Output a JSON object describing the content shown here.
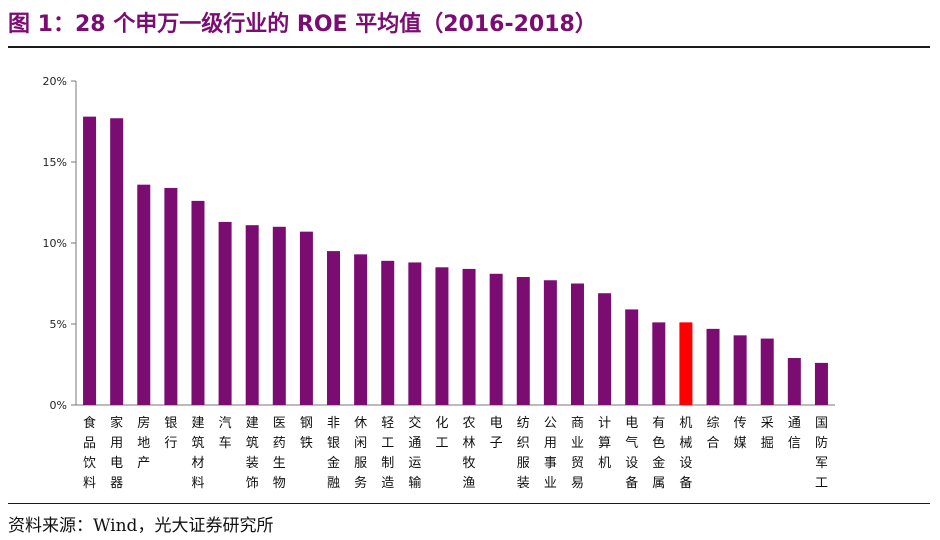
{
  "header": {
    "title": "图 1：28 个申万一级行业的 ROE 平均值（2016-2018）"
  },
  "footer": {
    "source": "资料来源：Wind，光大证券研究所"
  },
  "colors": {
    "bar": "#7B0C72",
    "highlight": "#FF0000",
    "title": "#7B0C72",
    "axis": "#777777"
  },
  "chart_data": {
    "type": "bar",
    "title": "28 个申万一级行业的 ROE 平均值（2016-2018）",
    "xlabel": "",
    "ylabel": "",
    "ylim": [
      0,
      20
    ],
    "ytick_labels": [
      "0%",
      "5%",
      "10%",
      "15%",
      "20%"
    ],
    "grid": false,
    "legend": "none",
    "highlight_category": "机械设备",
    "categories": [
      "食品饮料",
      "家用电器",
      "房地产",
      "银行",
      "建筑材料",
      "汽车",
      "建筑装饰",
      "医药生物",
      "钢铁",
      "非银金融",
      "休闲服务",
      "轻工制造",
      "交通运输",
      "化工",
      "农林牧渔",
      "电子",
      "纺织服装",
      "公用事业",
      "商业贸易",
      "计算机",
      "电气设备",
      "有色金属",
      "机械设备",
      "综合",
      "传媒",
      "采掘",
      "通信",
      "国防军工"
    ],
    "values": [
      17.8,
      17.7,
      13.6,
      13.4,
      12.6,
      11.3,
      11.1,
      11.0,
      10.7,
      9.5,
      9.3,
      8.9,
      8.8,
      8.5,
      8.4,
      8.1,
      7.9,
      7.7,
      7.5,
      6.9,
      5.9,
      5.1,
      5.1,
      4.7,
      4.3,
      4.1,
      2.9,
      2.6
    ]
  }
}
